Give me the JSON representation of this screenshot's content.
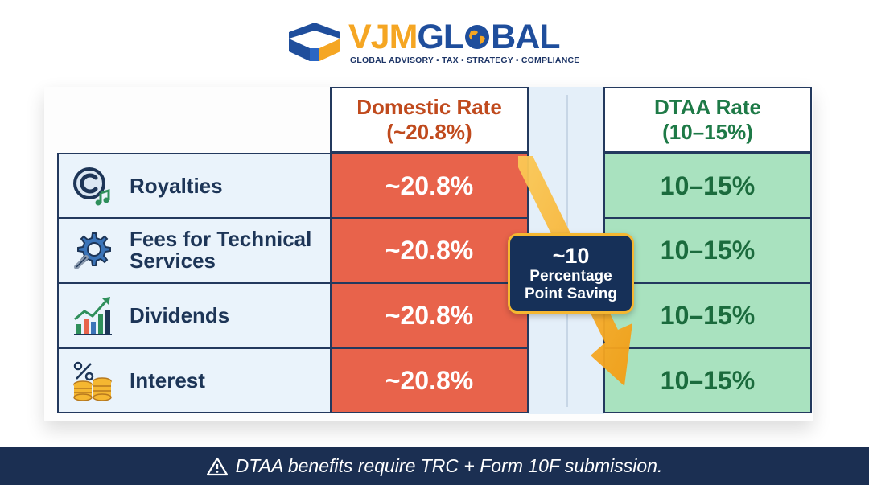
{
  "brand": {
    "name_part1": "VJM",
    "name_part2": "GL",
    "name_part3": "BAL",
    "tagline": "GLOBAL ADVISORY • TAX • STRATEGY • COMPLIANCE",
    "colors": {
      "orange": "#f5a623",
      "blue": "#1f4e9c",
      "navy": "#1d3567"
    }
  },
  "table": {
    "headers": {
      "domestic_line1": "Domestic Rate",
      "domestic_line2": "(~20.8%)",
      "dtaa_line1": "DTAA Rate",
      "dtaa_line2": "(10–15%)"
    },
    "rows": [
      {
        "icon": "copyright-music-icon",
        "label": "Royalties",
        "domestic": "~20.8%",
        "dtaa": "10–15%"
      },
      {
        "icon": "gear-wrench-icon",
        "label": "Fees for Technical Services",
        "domestic": "~20.8%",
        "dtaa": "10–15%"
      },
      {
        "icon": "growth-chart-icon",
        "label": "Dividends",
        "domestic": "~20.8%",
        "dtaa": "10–15%"
      },
      {
        "icon": "percent-coins-icon",
        "label": "Interest",
        "domestic": "~20.8%",
        "dtaa": "10–15%"
      }
    ],
    "colors": {
      "domestic_cell": "#e8634b",
      "dtaa_cell": "#a9e2bf",
      "border": "#23395e"
    }
  },
  "callout": {
    "value": "~10",
    "line2": "Percentage",
    "line3": "Point Saving"
  },
  "footer": {
    "icon": "warning-icon",
    "text": "DTAA benefits require TRC + Form 10F submission."
  }
}
